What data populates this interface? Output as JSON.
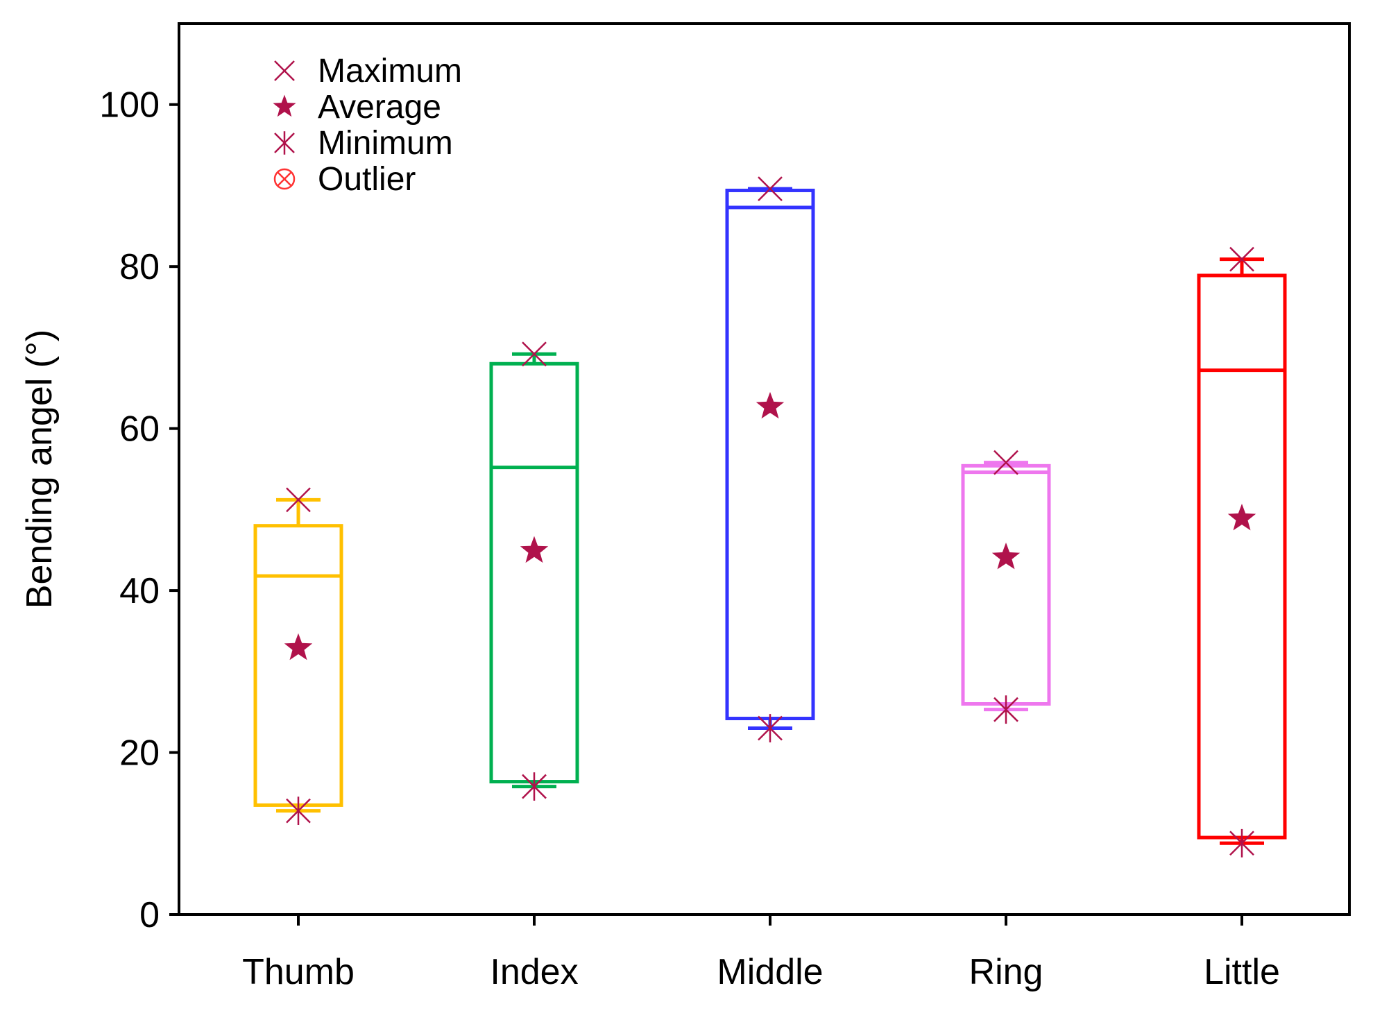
{
  "chart_data": {
    "type": "box",
    "title": "",
    "xlabel": "",
    "ylabel": "Bending angel (°)",
    "ylim": [
      0,
      110
    ],
    "yticks": [
      0,
      20,
      40,
      60,
      80,
      100
    ],
    "categories": [
      "Thumb",
      "Index",
      "Middle",
      "Ring",
      "Little"
    ],
    "grid": false,
    "legend": {
      "position": "top-left",
      "entries": [
        {
          "label": "Maximum",
          "marker": "x-mark"
        },
        {
          "label": "Average",
          "marker": "star"
        },
        {
          "label": "Minimum",
          "marker": "asterisk"
        },
        {
          "label": "Outlier",
          "marker": "circle-x"
        }
      ]
    },
    "boxes": [
      {
        "category": "Thumb",
        "color": "#ffc000",
        "whisker_low": 12.8,
        "q1": 13.5,
        "median": 41.8,
        "q3": 48.0,
        "whisker_high": 51.2,
        "minimum": 12.8,
        "average": 32.9,
        "maximum": 51.2
      },
      {
        "category": "Index",
        "color": "#00b050",
        "whisker_low": 15.8,
        "q1": 16.4,
        "median": 55.2,
        "q3": 68.0,
        "whisker_high": 69.2,
        "minimum": 15.8,
        "average": 44.9,
        "maximum": 69.2
      },
      {
        "category": "Middle",
        "color": "#3333ff",
        "whisker_low": 23.0,
        "q1": 24.2,
        "median": 87.3,
        "q3": 89.4,
        "whisker_high": 89.6,
        "minimum": 23.0,
        "average": 62.7,
        "maximum": 89.6
      },
      {
        "category": "Ring",
        "color": "#ee77ee",
        "whisker_low": 25.3,
        "q1": 26.0,
        "median": 54.6,
        "q3": 55.4,
        "whisker_high": 55.8,
        "minimum": 25.3,
        "average": 44.1,
        "maximum": 55.8
      },
      {
        "category": "Little",
        "color": "#ff0000",
        "whisker_low": 8.8,
        "q1": 9.5,
        "median": 67.2,
        "q3": 78.9,
        "whisker_high": 80.9,
        "minimum": 8.8,
        "average": 48.9,
        "maximum": 80.9
      }
    ],
    "marker_color": "#b0124b",
    "outlier_color": "#ff3333"
  }
}
